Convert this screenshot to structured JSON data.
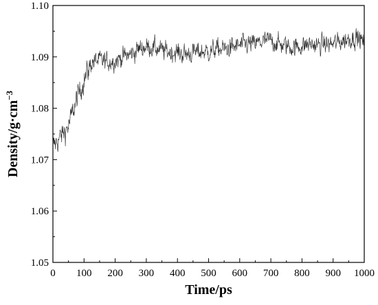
{
  "chart_data": {
    "type": "line",
    "title": "",
    "xlabel": "Time/ps",
    "ylabel": "Density/g·cm",
    "ylabel_superscript": "−3",
    "xlim": [
      0,
      1000
    ],
    "ylim": [
      1.05,
      1.1
    ],
    "xticks": [
      0,
      100,
      200,
      300,
      400,
      500,
      600,
      700,
      800,
      900,
      1000
    ],
    "xtick_labels": [
      "0",
      "100",
      "200",
      "300",
      "400",
      "500",
      "600",
      "700",
      "800",
      "900",
      "1000"
    ],
    "yticks": [
      1.05,
      1.06,
      1.07,
      1.08,
      1.09,
      1.1
    ],
    "ytick_labels": [
      "1.05",
      "1.06",
      "1.07",
      "1.08",
      "1.09",
      "1.10"
    ],
    "grid": false,
    "legend": "none",
    "line_color": "#333333",
    "series": [
      {
        "x": [
          0,
          25,
          50,
          75,
          100,
          125,
          150,
          175,
          200,
          225,
          250,
          275,
          300,
          325,
          350,
          375,
          400,
          425,
          450,
          475,
          500,
          525,
          550,
          575,
          600,
          625,
          650,
          675,
          700,
          725,
          750,
          775,
          800,
          825,
          850,
          875,
          900,
          925,
          950,
          975,
          1000
        ],
        "values": [
          1.0725,
          1.0745,
          1.0765,
          1.0815,
          1.0855,
          1.089,
          1.0893,
          1.089,
          1.0893,
          1.09,
          1.0905,
          1.0915,
          1.092,
          1.0918,
          1.0912,
          1.091,
          1.0908,
          1.0905,
          1.0908,
          1.091,
          1.091,
          1.0915,
          1.0915,
          1.0918,
          1.0922,
          1.0925,
          1.0925,
          1.093,
          1.0932,
          1.0925,
          1.0922,
          1.0918,
          1.0922,
          1.0925,
          1.0922,
          1.0925,
          1.0925,
          1.093,
          1.0935,
          1.0938,
          1.0928
        ]
      }
    ]
  }
}
